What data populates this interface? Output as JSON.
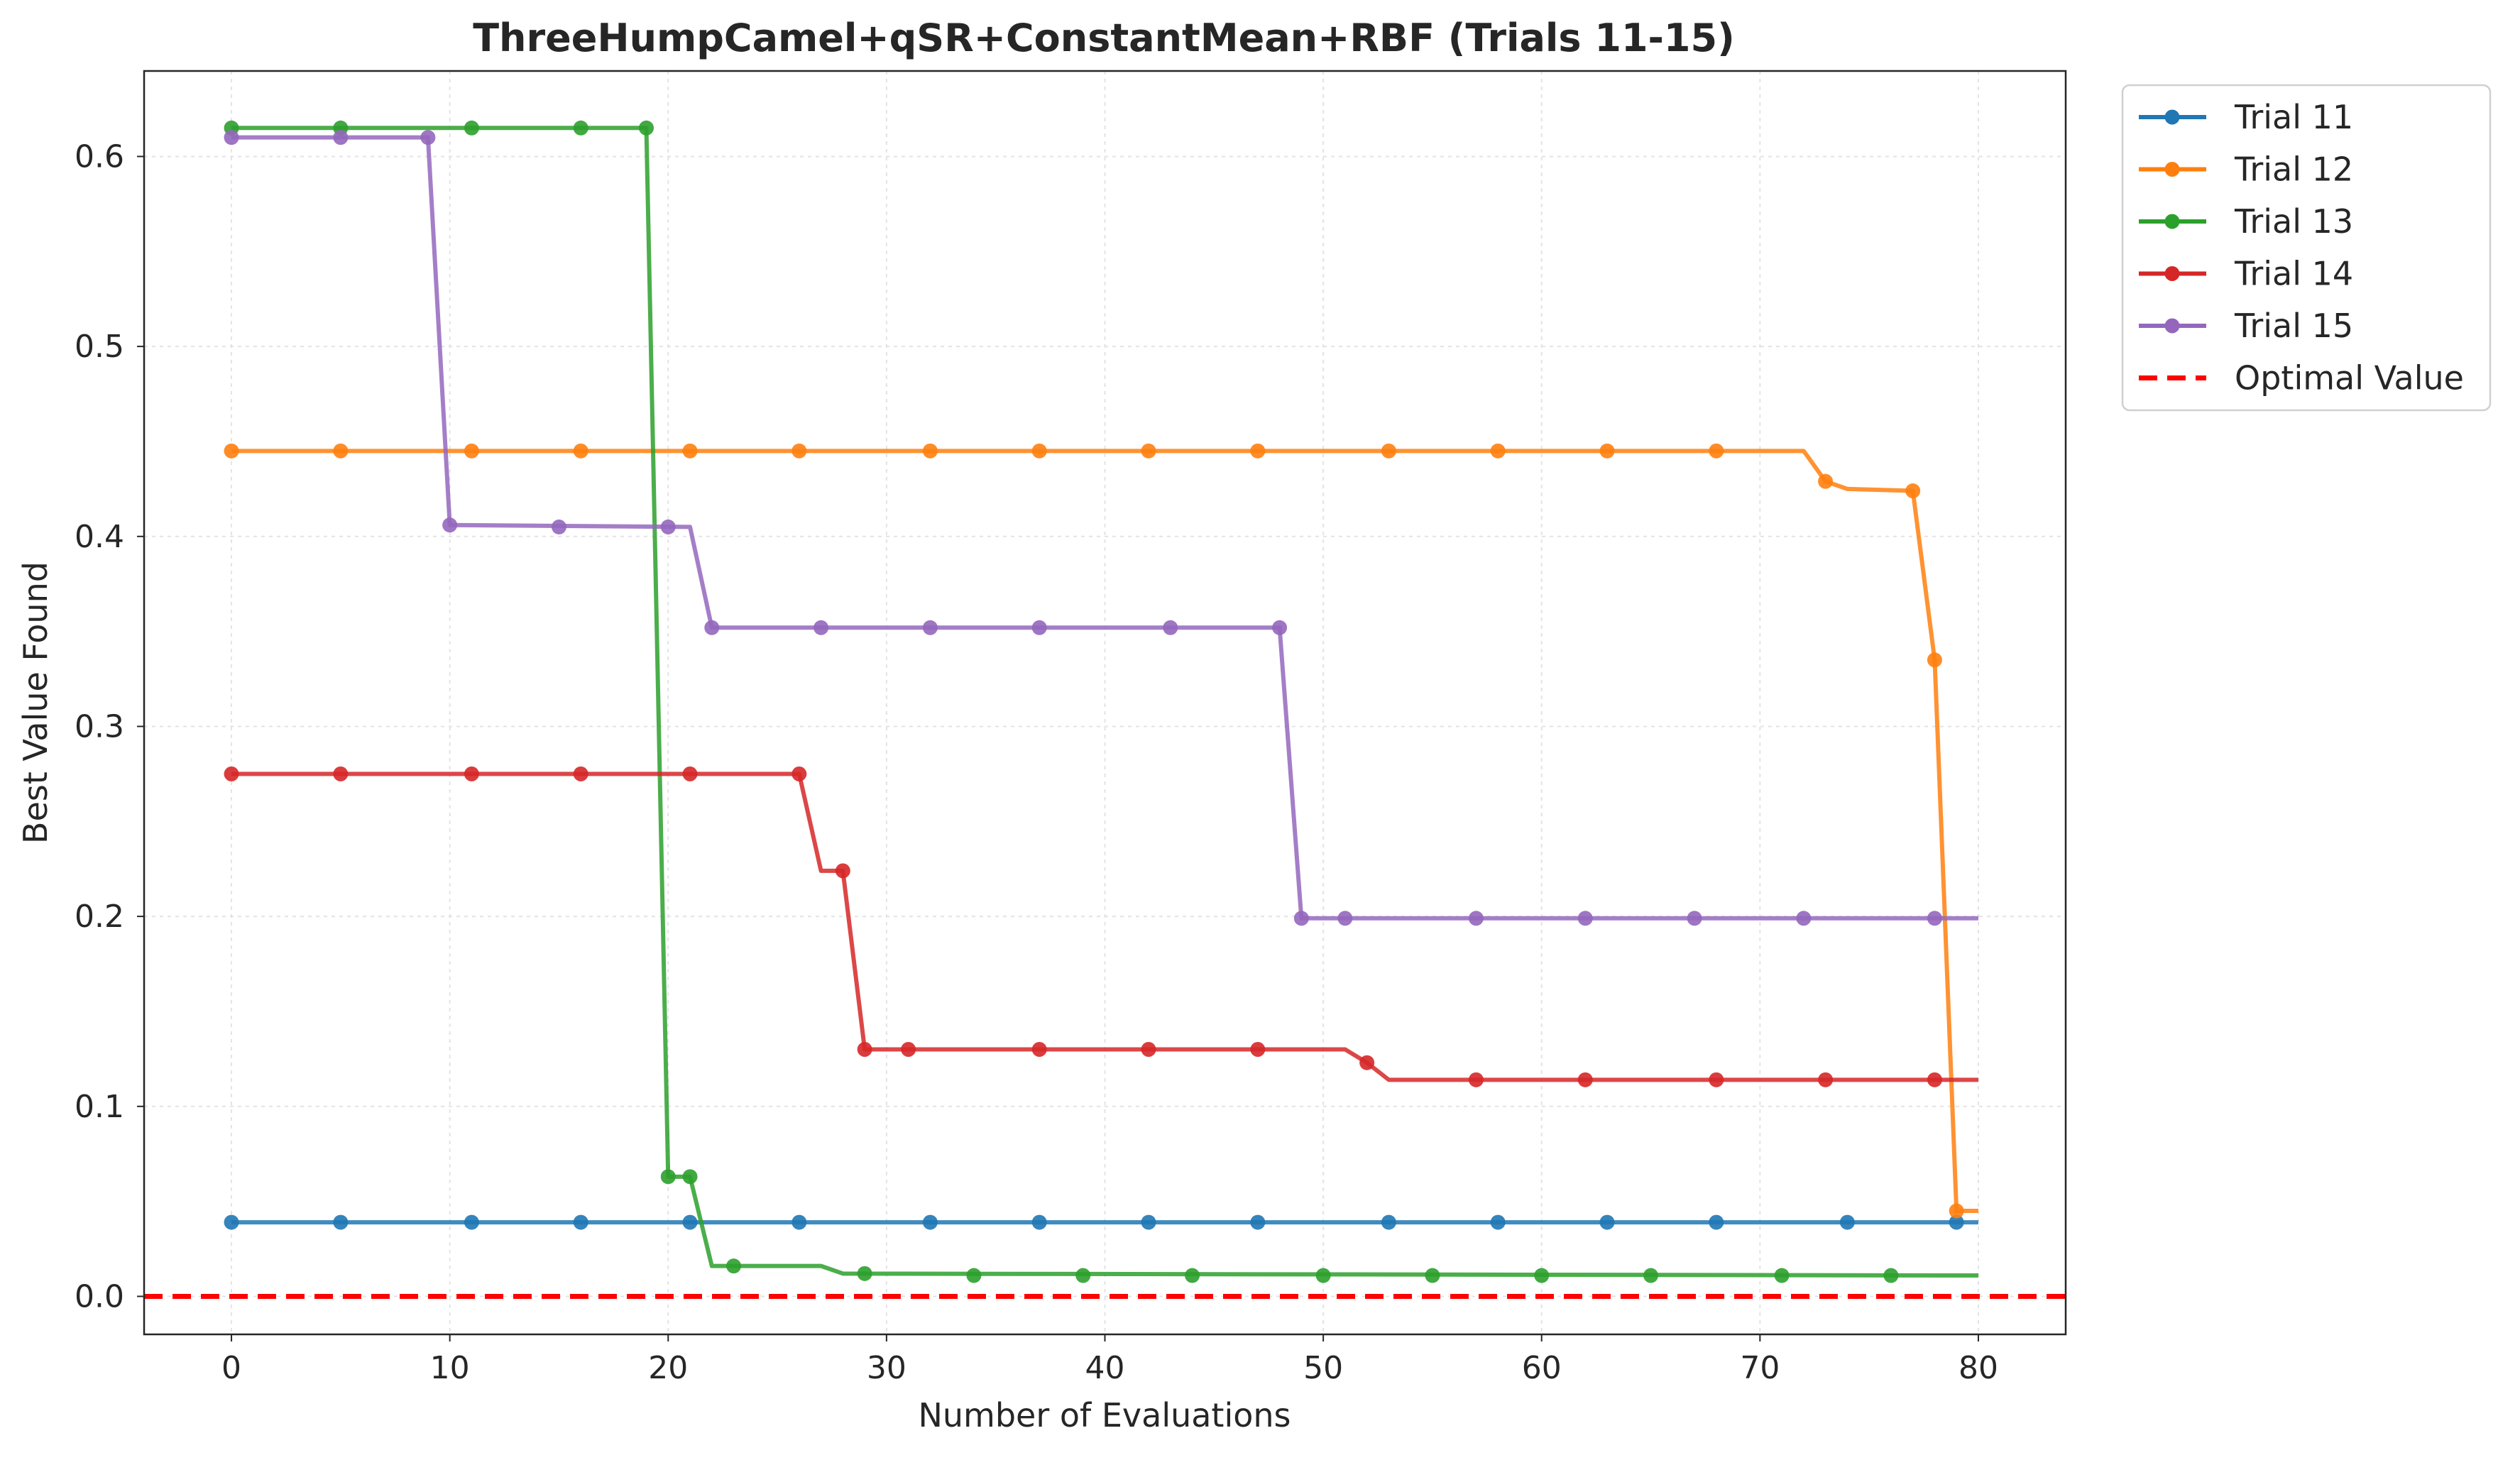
{
  "chart_data": {
    "type": "line",
    "title": "ThreeHumpCamel+qSR+ConstantMean+RBF (Trials 11-15)",
    "xlabel": "Number of Evaluations",
    "ylabel": "Best Value Found",
    "xlim": [
      -4,
      84
    ],
    "ylim": [
      -0.02,
      0.645
    ],
    "xticks": [
      0,
      10,
      20,
      30,
      40,
      50,
      60,
      70,
      80
    ],
    "yticks": [
      0.0,
      0.1,
      0.2,
      0.3,
      0.4,
      0.5,
      0.6
    ],
    "xtick_labels": [
      "0",
      "10",
      "20",
      "30",
      "40",
      "50",
      "60",
      "70",
      "80"
    ],
    "ytick_labels": [
      "0.0",
      "0.1",
      "0.2",
      "0.3",
      "0.4",
      "0.5",
      "0.6"
    ],
    "grid": true,
    "legend_position": "outside-top-right",
    "optimal_value": 0.0,
    "optimal_label": "Optimal Value",
    "optimal_color": "#ff0000",
    "series": [
      {
        "name": "Trial 11",
        "color": "#1f77b4",
        "line": [
          [
            0,
            0.039
          ],
          [
            80,
            0.039
          ]
        ],
        "markers": [
          [
            0,
            0.039
          ],
          [
            5,
            0.039
          ],
          [
            11,
            0.039
          ],
          [
            16,
            0.039
          ],
          [
            21,
            0.039
          ],
          [
            26,
            0.039
          ],
          [
            32,
            0.039
          ],
          [
            37,
            0.039
          ],
          [
            42,
            0.039
          ],
          [
            47,
            0.039
          ],
          [
            53,
            0.039
          ],
          [
            58,
            0.039
          ],
          [
            63,
            0.039
          ],
          [
            68,
            0.039
          ],
          [
            74,
            0.039
          ],
          [
            79,
            0.039
          ]
        ]
      },
      {
        "name": "Trial 12",
        "color": "#ff7f0e",
        "line": [
          [
            0,
            0.445
          ],
          [
            72,
            0.445
          ],
          [
            73,
            0.429
          ],
          [
            74,
            0.425
          ],
          [
            77,
            0.424
          ],
          [
            78,
            0.335
          ],
          [
            79,
            0.045
          ],
          [
            80,
            0.045
          ]
        ],
        "markers": [
          [
            0,
            0.445
          ],
          [
            5,
            0.445
          ],
          [
            11,
            0.445
          ],
          [
            16,
            0.445
          ],
          [
            21,
            0.445
          ],
          [
            26,
            0.445
          ],
          [
            32,
            0.445
          ],
          [
            37,
            0.445
          ],
          [
            42,
            0.445
          ],
          [
            47,
            0.445
          ],
          [
            53,
            0.445
          ],
          [
            58,
            0.445
          ],
          [
            63,
            0.445
          ],
          [
            68,
            0.445
          ],
          [
            73,
            0.429
          ],
          [
            77,
            0.424
          ],
          [
            78,
            0.335
          ],
          [
            79,
            0.045
          ]
        ]
      },
      {
        "name": "Trial 13",
        "color": "#2ca02c",
        "line": [
          [
            0,
            0.615
          ],
          [
            19,
            0.615
          ],
          [
            20,
            0.063
          ],
          [
            21,
            0.063
          ],
          [
            22,
            0.016
          ],
          [
            27,
            0.016
          ],
          [
            28,
            0.012
          ],
          [
            80,
            0.011
          ]
        ],
        "markers": [
          [
            0,
            0.615
          ],
          [
            5,
            0.615
          ],
          [
            11,
            0.615
          ],
          [
            16,
            0.615
          ],
          [
            19,
            0.615
          ],
          [
            20,
            0.063
          ],
          [
            21,
            0.063
          ],
          [
            23,
            0.016
          ],
          [
            29,
            0.012
          ],
          [
            34,
            0.011
          ],
          [
            39,
            0.011
          ],
          [
            44,
            0.011
          ],
          [
            50,
            0.011
          ],
          [
            55,
            0.011
          ],
          [
            60,
            0.011
          ],
          [
            65,
            0.011
          ],
          [
            71,
            0.011
          ],
          [
            76,
            0.011
          ]
        ]
      },
      {
        "name": "Trial 14",
        "color": "#d62728",
        "line": [
          [
            0,
            0.275
          ],
          [
            26,
            0.275
          ],
          [
            27,
            0.224
          ],
          [
            28,
            0.224
          ],
          [
            29,
            0.13
          ],
          [
            51,
            0.13
          ],
          [
            52,
            0.123
          ],
          [
            53,
            0.114
          ],
          [
            80,
            0.114
          ]
        ],
        "markers": [
          [
            0,
            0.275
          ],
          [
            5,
            0.275
          ],
          [
            11,
            0.275
          ],
          [
            16,
            0.275
          ],
          [
            21,
            0.275
          ],
          [
            26,
            0.275
          ],
          [
            28,
            0.224
          ],
          [
            29,
            0.13
          ],
          [
            31,
            0.13
          ],
          [
            37,
            0.13
          ],
          [
            42,
            0.13
          ],
          [
            47,
            0.13
          ],
          [
            52,
            0.123
          ],
          [
            57,
            0.114
          ],
          [
            62,
            0.114
          ],
          [
            68,
            0.114
          ],
          [
            73,
            0.114
          ],
          [
            78,
            0.114
          ]
        ]
      },
      {
        "name": "Trial 15",
        "color": "#9467bd",
        "line": [
          [
            0,
            0.61
          ],
          [
            9,
            0.61
          ],
          [
            10,
            0.406
          ],
          [
            21,
            0.405
          ],
          [
            22,
            0.352
          ],
          [
            48,
            0.352
          ],
          [
            49,
            0.199
          ],
          [
            80,
            0.199
          ]
        ],
        "markers": [
          [
            0,
            0.61
          ],
          [
            5,
            0.61
          ],
          [
            9,
            0.61
          ],
          [
            10,
            0.406
          ],
          [
            15,
            0.405
          ],
          [
            20,
            0.405
          ],
          [
            22,
            0.352
          ],
          [
            27,
            0.352
          ],
          [
            32,
            0.352
          ],
          [
            37,
            0.352
          ],
          [
            43,
            0.352
          ],
          [
            48,
            0.352
          ],
          [
            49,
            0.199
          ],
          [
            51,
            0.199
          ],
          [
            57,
            0.199
          ],
          [
            62,
            0.199
          ],
          [
            67,
            0.199
          ],
          [
            72,
            0.199
          ],
          [
            78,
            0.199
          ]
        ]
      }
    ]
  }
}
